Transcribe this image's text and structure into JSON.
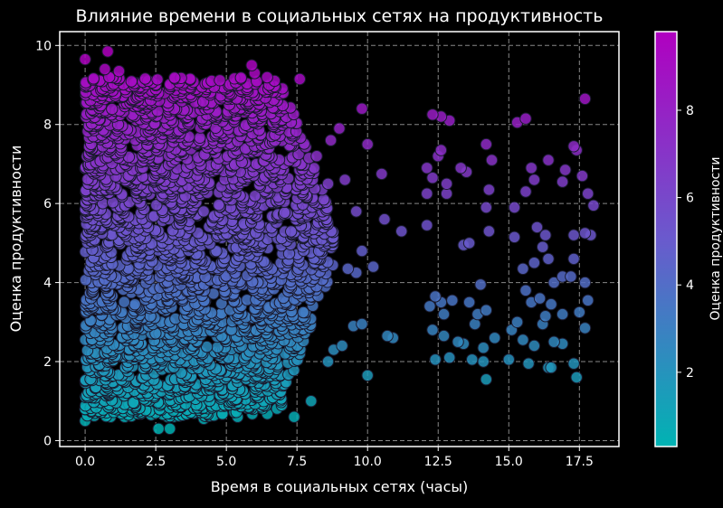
{
  "chart_data": {
    "type": "scatter",
    "title": "Влияние времени в социальных сетях на продуктивность",
    "xlabel": "Время в социальных сетях (часы)",
    "ylabel": "Оценка продуктивности",
    "xlim": [
      -0.9,
      18.9
    ],
    "ylim": [
      -0.15,
      10.35
    ],
    "x_ticks": [
      0.0,
      2.5,
      5.0,
      7.5,
      10.0,
      12.5,
      15.0,
      17.5
    ],
    "x_tick_labels": [
      "0.0",
      "2.5",
      "5.0",
      "7.5",
      "10.0",
      "12.5",
      "15.0",
      "17.5"
    ],
    "y_ticks": [
      0,
      2,
      4,
      6,
      8,
      10
    ],
    "y_tick_labels": [
      "0",
      "2",
      "4",
      "6",
      "8",
      "10"
    ],
    "grid": true,
    "grid_style": "dashed",
    "background": "#000000",
    "point_edge_color": "#1a1a2e",
    "colormap": {
      "name": "cool-like teal-magenta",
      "low_color": "#00b3b3",
      "mid_color": "#6a5acd",
      "high_color": "#b000c0",
      "min": 0.3,
      "max": 9.8
    },
    "colorbar": {
      "label": "Оценка продуктивности",
      "ticks": [
        2,
        4,
        6,
        8
      ],
      "tick_labels": [
        "2",
        "4",
        "6",
        "8"
      ]
    },
    "points": [
      [
        0.0,
        9.65
      ],
      [
        0.8,
        9.85
      ],
      [
        0.7,
        9.4
      ],
      [
        1.2,
        9.35
      ],
      [
        5.9,
        9.5
      ],
      [
        6.0,
        9.3
      ],
      [
        7.6,
        9.15
      ],
      [
        9.8,
        8.4
      ],
      [
        10.0,
        7.5
      ],
      [
        10.5,
        6.75
      ],
      [
        9.0,
        7.9
      ],
      [
        9.2,
        6.6
      ],
      [
        12.3,
        8.25
      ],
      [
        12.6,
        8.2
      ],
      [
        12.9,
        8.1
      ],
      [
        15.3,
        8.05
      ],
      [
        15.6,
        8.15
      ],
      [
        17.7,
        8.65
      ],
      [
        12.6,
        7.35
      ],
      [
        12.5,
        7.2
      ],
      [
        12.1,
        6.9
      ],
      [
        12.3,
        6.65
      ],
      [
        12.1,
        6.25
      ],
      [
        12.8,
        6.5
      ],
      [
        12.8,
        6.25
      ],
      [
        13.3,
        6.9
      ],
      [
        13.5,
        6.8
      ],
      [
        14.2,
        7.5
      ],
      [
        14.4,
        7.1
      ],
      [
        14.3,
        6.35
      ],
      [
        14.2,
        5.9
      ],
      [
        15.2,
        5.9
      ],
      [
        15.6,
        6.3
      ],
      [
        15.8,
        6.9
      ],
      [
        15.9,
        6.6
      ],
      [
        16.4,
        7.1
      ],
      [
        17.3,
        7.45
      ],
      [
        17.4,
        7.35
      ],
      [
        17.6,
        6.7
      ],
      [
        17.0,
        6.85
      ],
      [
        16.9,
        6.55
      ],
      [
        17.8,
        6.25
      ],
      [
        18.0,
        5.95
      ],
      [
        17.9,
        5.2
      ],
      [
        17.7,
        5.25
      ],
      [
        17.3,
        5.2
      ],
      [
        16.0,
        5.4
      ],
      [
        16.3,
        5.2
      ],
      [
        15.2,
        5.15
      ],
      [
        14.3,
        5.3
      ],
      [
        13.6,
        5.0
      ],
      [
        13.4,
        4.95
      ],
      [
        12.1,
        5.45
      ],
      [
        11.2,
        5.3
      ],
      [
        10.6,
        5.6
      ],
      [
        9.6,
        5.8
      ],
      [
        9.8,
        4.8
      ],
      [
        10.2,
        4.4
      ],
      [
        9.3,
        4.35
      ],
      [
        9.6,
        4.25
      ],
      [
        15.5,
        4.35
      ],
      [
        15.9,
        4.5
      ],
      [
        16.2,
        4.9
      ],
      [
        16.4,
        4.6
      ],
      [
        16.6,
        4.0
      ],
      [
        16.9,
        4.15
      ],
      [
        17.2,
        4.15
      ],
      [
        17.3,
        4.6
      ],
      [
        17.7,
        4.0
      ],
      [
        17.8,
        3.55
      ],
      [
        17.5,
        3.25
      ],
      [
        16.9,
        3.2
      ],
      [
        16.5,
        3.45
      ],
      [
        16.1,
        3.6
      ],
      [
        15.6,
        3.8
      ],
      [
        15.8,
        3.5
      ],
      [
        15.3,
        3.0
      ],
      [
        15.1,
        2.8
      ],
      [
        15.5,
        2.55
      ],
      [
        15.9,
        2.4
      ],
      [
        16.2,
        2.95
      ],
      [
        16.3,
        3.15
      ],
      [
        16.6,
        2.5
      ],
      [
        16.9,
        2.45
      ],
      [
        16.4,
        1.85
      ],
      [
        16.5,
        1.85
      ],
      [
        17.3,
        1.95
      ],
      [
        17.4,
        1.6
      ],
      [
        17.7,
        2.85
      ],
      [
        14.0,
        3.95
      ],
      [
        14.2,
        3.3
      ],
      [
        13.6,
        3.5
      ],
      [
        13.9,
        3.2
      ],
      [
        13.0,
        3.55
      ],
      [
        12.6,
        3.5
      ],
      [
        12.2,
        3.4
      ],
      [
        12.4,
        3.65
      ],
      [
        12.7,
        3.2
      ],
      [
        13.2,
        2.5
      ],
      [
        13.4,
        2.45
      ],
      [
        13.8,
        2.95
      ],
      [
        14.1,
        2.35
      ],
      [
        14.5,
        2.6
      ],
      [
        15.0,
        2.05
      ],
      [
        15.7,
        1.95
      ],
      [
        14.1,
        2.0
      ],
      [
        13.7,
        2.05
      ],
      [
        12.9,
        2.1
      ],
      [
        12.4,
        2.05
      ],
      [
        12.3,
        2.8
      ],
      [
        12.7,
        2.65
      ],
      [
        14.2,
        1.55
      ],
      [
        10.7,
        2.65
      ],
      [
        10.9,
        2.6
      ],
      [
        10.0,
        1.65
      ],
      [
        9.1,
        2.4
      ],
      [
        9.5,
        2.9
      ],
      [
        9.8,
        2.95
      ],
      [
        8.8,
        2.3
      ],
      [
        8.6,
        2.0
      ],
      [
        8.0,
        1.0
      ],
      [
        7.4,
        0.6
      ],
      [
        5.4,
        0.6
      ],
      [
        4.2,
        0.55
      ],
      [
        3.0,
        0.3
      ],
      [
        2.6,
        0.3
      ],
      [
        1.4,
        0.6
      ],
      [
        0.9,
        0.6
      ],
      [
        0.0,
        0.5
      ],
      [
        0.0,
        0.8
      ],
      [
        0.4,
        1.2
      ],
      [
        2.5,
        0.7
      ],
      [
        8.6,
        6.5
      ],
      [
        8.7,
        7.6
      ],
      [
        8.2,
        7.2
      ],
      [
        8.4,
        5.8
      ],
      [
        8.2,
        4.6
      ],
      [
        8.5,
        3.9
      ]
    ],
    "cloud": {
      "x_range": [
        0,
        9
      ],
      "y_range": [
        0.6,
        9.2
      ]
    }
  }
}
